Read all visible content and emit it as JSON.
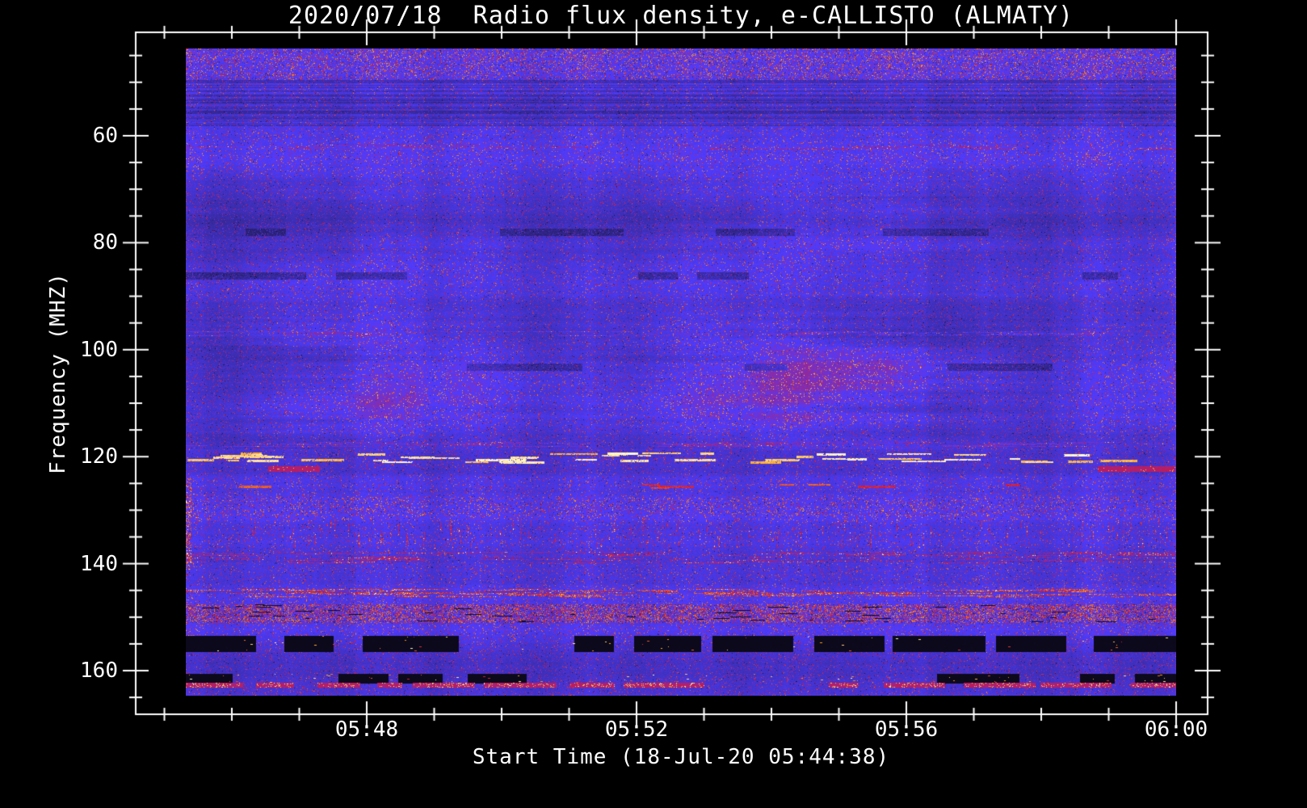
{
  "chart_data": {
    "type": "heatmap",
    "title": "2020/07/18  Radio flux density, e-CALLISTO (ALMATY)",
    "xlabel": "Start Time (18-Jul-20 05:44:38)",
    "ylabel": "Frequency (MHZ)",
    "x_ticks": [
      "05:48",
      "05:52",
      "05:56",
      "06:00"
    ],
    "y_ticks": [
      "60",
      "80",
      "100",
      "120",
      "140",
      "160"
    ],
    "x_range": [
      "05:44:38",
      "06:00:00"
    ],
    "y_range_mhz": [
      44,
      165
    ],
    "y_axis_inverted": true,
    "x_minor_tick_seconds": 60,
    "y_minor_tick_mhz": 5,
    "grid": false,
    "legend": "none",
    "colors": {
      "background": "#000000",
      "axis": "#ffffff",
      "text": "#ffffff",
      "base_blue": "#2020dd",
      "speckle_red": "#c22440",
      "burst_orange": "#ff9922",
      "burst_yellow": "#ffee88",
      "dropout_black": "#000000"
    },
    "features": [
      {
        "label": "top speckle rows",
        "mhz": [
          43.7,
          49.5
        ],
        "render": "speckle-band",
        "density": 0.1
      },
      {
        "label": "dark interference rows",
        "mhz": [
          49.5,
          58.0
        ],
        "render": "dark-rows",
        "strength": 0.1
      },
      {
        "label": "faint line 62 MHz",
        "mhz": [
          61.7,
          62.5
        ],
        "render": "red-dashes",
        "coverage": 0.25,
        "boost": 0.1
      },
      {
        "label": "weak wavy ionospheric bands",
        "mhz": [
          66,
          90
        ],
        "render": "waves",
        "strength": 0.035
      },
      {
        "label": "dark dashes 78 MHz",
        "mhz": [
          77.4,
          78.6
        ],
        "render": "dark-dashes",
        "strength": 0.14,
        "coverage": 0.3
      },
      {
        "label": "dark dashes 86 MHz",
        "mhz": [
          85.6,
          86.8
        ],
        "render": "dark-dashes",
        "strength": 0.16,
        "coverage": 0.35
      },
      {
        "label": "strong wavy ionospheric bands",
        "mhz": [
          90,
          118.5
        ],
        "render": "waves",
        "strength": 0.055
      },
      {
        "label": "faint line 97 MHz",
        "mhz": [
          96.6,
          97.4
        ],
        "render": "red-dashes",
        "coverage": 0.3,
        "boost": 0.1
      },
      {
        "label": "dark dashes 103 MHz",
        "mhz": [
          102.6,
          103.8
        ],
        "render": "dark-dashes",
        "strength": 0.15,
        "coverage": 0.3
      },
      {
        "label": "speckle line 117.5 MHz",
        "mhz": [
          117.2,
          118.0
        ],
        "render": "red-dashes",
        "coverage": 0.35,
        "boost": 0.12
      },
      {
        "label": "bright RFI bursts 120 MHz",
        "mhz": [
          119.2,
          121.4
        ],
        "render": "bright-bursts",
        "count": 48
      },
      {
        "label": "red RFI line 122 MHz",
        "mhz": [
          121.8,
          122.7
        ],
        "render": "red-line",
        "coverage": 0.5
      },
      {
        "label": "sporadic red bursts 125.5 MHz",
        "mhz": [
          125.1,
          126.1
        ],
        "render": "red-bursts",
        "count": 8
      },
      {
        "label": "speckle band 128-131 MHz",
        "mhz": [
          127.5,
          131.0
        ],
        "render": "speckle-band",
        "density": 0.06
      },
      {
        "label": "vertical dash noise 131-137 MHz",
        "mhz": [
          131,
          137
        ],
        "render": "vertical-dashes",
        "density": 0.12
      },
      {
        "label": "red streaks 138-140 MHz",
        "mhz": [
          137.8,
          139.8
        ],
        "render": "red-dashes",
        "coverage": 0.3,
        "boost": 0.17
      },
      {
        "label": "orange speckle line 145.5 MHz",
        "mhz": [
          144.8,
          146.1
        ],
        "render": "red-dashes",
        "coverage": 0.4,
        "boost": 0.22
      },
      {
        "label": "dense speckle band 148-151 MHz",
        "mhz": [
          147.6,
          150.9
        ],
        "render": "speckle-band",
        "density": 0.28,
        "black_dashes": 45
      },
      {
        "label": "saturated RFI band 154-156 MHz",
        "mhz": [
          153.6,
          156.4
        ],
        "render": "dropout",
        "coverage": 0.75,
        "bright_density": 0.05
      },
      {
        "label": "saturated RFI band 161-162 MHz",
        "mhz": [
          160.6,
          162.25
        ],
        "render": "dropout",
        "coverage": 0.65,
        "bright_density": 0.07
      },
      {
        "label": "red RFI line 162.6 MHz",
        "mhz": [
          162.3,
          163.1
        ],
        "render": "red-line",
        "coverage": 0.85,
        "bright": true
      }
    ]
  }
}
